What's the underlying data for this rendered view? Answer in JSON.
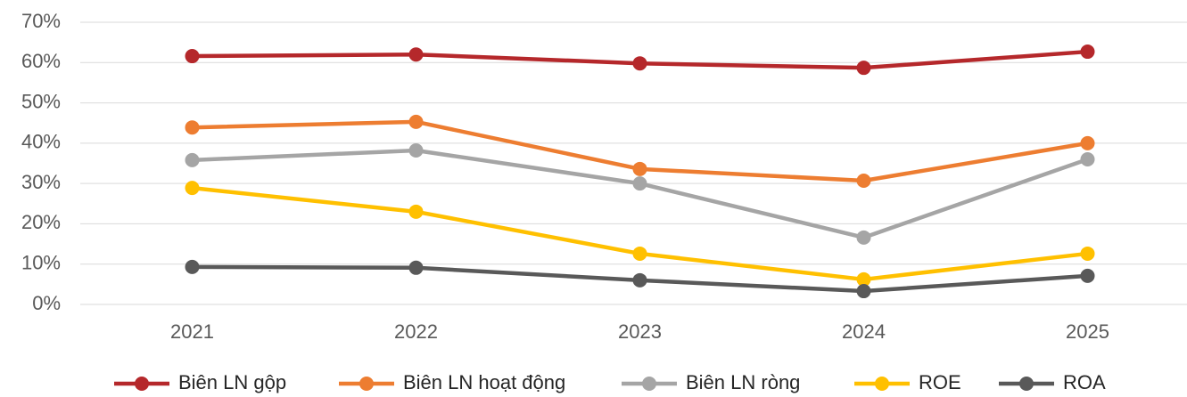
{
  "chart_data": {
    "type": "line",
    "categories": [
      "2021",
      "2022",
      "2023",
      "2024",
      "2025"
    ],
    "series": [
      {
        "name": "Biên LN gộp",
        "color": "#b5282b",
        "values": [
          61.6,
          62.0,
          59.8,
          58.7,
          62.7
        ]
      },
      {
        "name": "Biên LN hoạt động",
        "color": "#ed7d31",
        "values": [
          43.9,
          45.3,
          33.6,
          30.7,
          40.0
        ]
      },
      {
        "name": "Biên LN ròng",
        "color": "#a5a5a5",
        "values": [
          35.8,
          38.2,
          30.0,
          16.6,
          36.0
        ]
      },
      {
        "name": "ROE",
        "color": "#ffc000",
        "values": [
          28.9,
          23.0,
          12.6,
          6.2,
          12.6
        ]
      },
      {
        "name": "ROA",
        "color": "#595959",
        "values": [
          9.3,
          9.1,
          6.0,
          3.3,
          7.1
        ]
      }
    ],
    "ylim": [
      0,
      70
    ],
    "yticks": [
      {
        "value": 0,
        "label": "0%"
      },
      {
        "value": 10,
        "label": "10%"
      },
      {
        "value": 20,
        "label": "20%"
      },
      {
        "value": 30,
        "label": "30%"
      },
      {
        "value": 40,
        "label": "40%"
      },
      {
        "value": 50,
        "label": "50%"
      },
      {
        "value": 60,
        "label": "60%"
      },
      {
        "value": 70,
        "label": "70%"
      }
    ],
    "grid": true,
    "legend": "bottom"
  }
}
